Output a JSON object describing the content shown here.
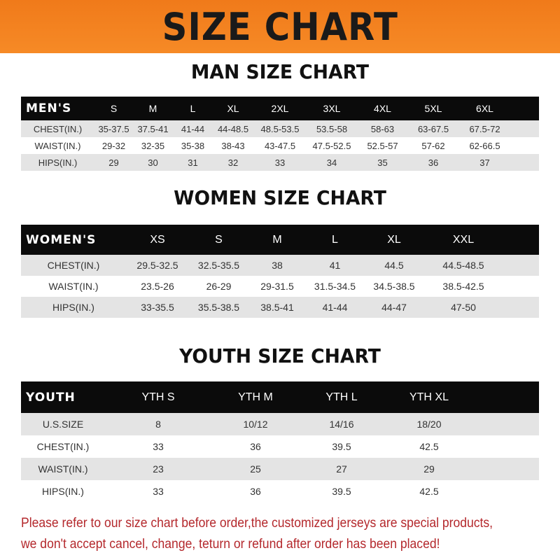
{
  "title": "SIZE CHART",
  "men": {
    "title": "MAN SIZE CHART",
    "header": [
      "MEN'S",
      "S",
      "M",
      "L",
      "XL",
      "2XL",
      "3XL",
      "4XL",
      "5XL",
      "6XL"
    ],
    "rows": [
      [
        "CHEST(IN.)",
        "35-37.5",
        "37.5-41",
        "41-44",
        "44-48.5",
        "48.5-53.5",
        "53.5-58",
        "58-63",
        "63-67.5",
        "67.5-72"
      ],
      [
        "WAIST(IN.)",
        "29-32",
        "32-35",
        "35-38",
        "38-43",
        "43-47.5",
        "47.5-52.5",
        "52.5-57",
        "57-62",
        "62-66.5"
      ],
      [
        "HIPS(IN.)",
        "29",
        "30",
        "31",
        "32",
        "33",
        "34",
        "35",
        "36",
        "37"
      ]
    ]
  },
  "women": {
    "title": "WOMEN SIZE CHART",
    "header": [
      "WOMEN'S",
      "XS",
      "S",
      "M",
      "L",
      "XL",
      "XXL"
    ],
    "rows": [
      [
        "CHEST(IN.)",
        "29.5-32.5",
        "32.5-35.5",
        "38",
        "41",
        "44.5",
        "44.5-48.5"
      ],
      [
        "WAIST(IN.)",
        "23.5-26",
        "26-29",
        "29-31.5",
        "31.5-34.5",
        "34.5-38.5",
        "38.5-42.5"
      ],
      [
        "HIPS(IN.)",
        "33-35.5",
        "35.5-38.5",
        "38.5-41",
        "41-44",
        "44-47",
        "47-50"
      ]
    ]
  },
  "youth": {
    "title": "YOUTH SIZE CHART",
    "header": [
      "YOUTH",
      "YTH S",
      "YTH M",
      "YTH L",
      "YTH XL"
    ],
    "rows": [
      [
        "U.S.SIZE",
        "8",
        "10/12",
        "14/16",
        "18/20"
      ],
      [
        "CHEST(IN.)",
        "33",
        "36",
        "39.5",
        "42.5"
      ],
      [
        "WAIST(IN.)",
        "23",
        "25",
        "27",
        "29"
      ],
      [
        "HIPS(IN.)",
        "33",
        "36",
        "39.5",
        "42.5"
      ]
    ]
  },
  "notice": [
    "Please refer to our size chart before order,the customized jerseys are special products,",
    "we don't accept cancel, change, teturn or refund after order has been placed!"
  ],
  "colors": {
    "banner": "#f68a26",
    "header_row": "#0b0b0b",
    "notice": "#b4282c"
  }
}
